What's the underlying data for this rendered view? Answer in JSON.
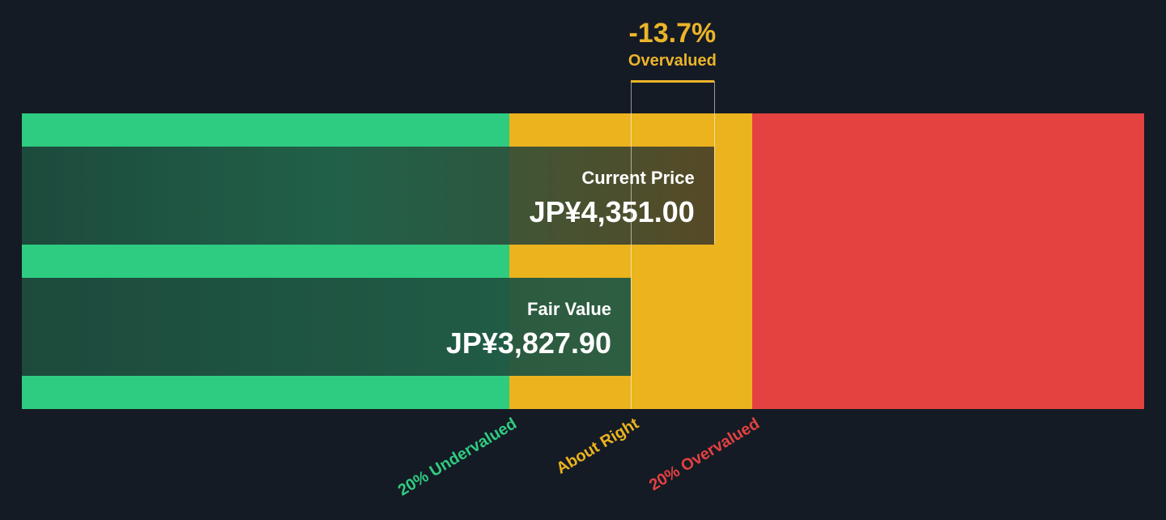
{
  "chart_data": {
    "type": "bar",
    "orientation": "horizontal",
    "currency": "JP¥",
    "series": [
      {
        "name": "Current Price",
        "value": 4351.0,
        "display": "JP¥4,351.00"
      },
      {
        "name": "Fair Value",
        "value": 3827.9,
        "display": "JP¥3,827.90"
      }
    ],
    "valuation": {
      "percent_label": "-13.7%",
      "status_label": "Overvalued",
      "status_color": "#ebb42a"
    },
    "zones": [
      {
        "name": "undervalued",
        "label": "20% Undervalued",
        "color": "#2ecc81",
        "from_ratio": 0.0,
        "to_ratio": 0.8
      },
      {
        "name": "about-right",
        "label": "About Right",
        "color": "#ebb31e",
        "from_ratio": 0.8,
        "to_ratio": 1.2
      },
      {
        "name": "overvalued",
        "label": "20% Overvalued",
        "color": "#e44141",
        "from_ratio": 1.2,
        "to_ratio": 2.0
      }
    ],
    "zone_label_colors": [
      "#2ecc81",
      "#ebb31e",
      "#e44141"
    ]
  }
}
